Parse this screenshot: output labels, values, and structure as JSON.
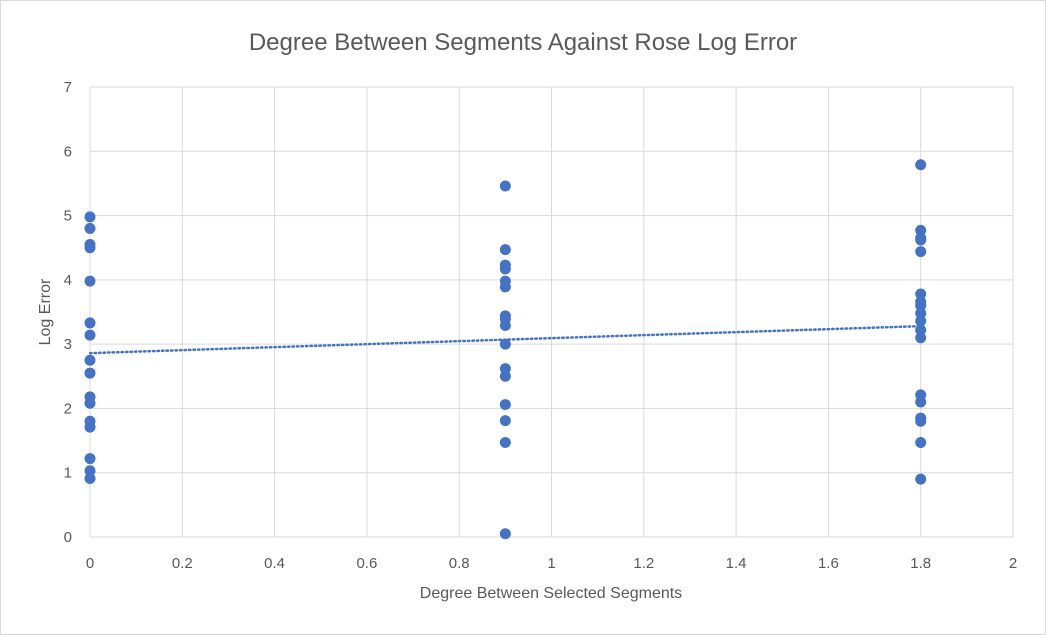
{
  "chart_data": {
    "type": "scatter",
    "title": "Degree Between Segments Against Rose Log Error",
    "xlabel": "Degree Between Selected Segments",
    "ylabel": "Log Error",
    "xlim": [
      0,
      2
    ],
    "ylim": [
      0,
      7
    ],
    "x_ticks": [
      "0",
      "0.2",
      "0.4",
      "0.6",
      "0.8",
      "1",
      "1.2",
      "1.4",
      "1.6",
      "1.8",
      "2"
    ],
    "y_ticks": [
      "0",
      "1",
      "2",
      "3",
      "4",
      "5",
      "6",
      "7"
    ],
    "grid": true,
    "legend": "none",
    "marker_color": "#4472C4",
    "trendline": {
      "type": "linear",
      "style": "dotted",
      "color": "#4472C4",
      "x": [
        0,
        1.8
      ],
      "y": [
        2.86,
        3.28
      ]
    },
    "series": [
      {
        "points": [
          [
            0,
            4.98
          ],
          [
            0,
            4.8
          ],
          [
            0,
            4.55
          ],
          [
            0,
            4.5
          ],
          [
            0,
            3.98
          ],
          [
            0,
            3.33
          ],
          [
            0,
            3.14
          ],
          [
            0,
            2.75
          ],
          [
            0,
            2.55
          ],
          [
            0,
            2.18
          ],
          [
            0,
            2.08
          ],
          [
            0,
            1.8
          ],
          [
            0,
            1.71
          ],
          [
            0,
            1.22
          ],
          [
            0,
            1.03
          ],
          [
            0,
            0.91
          ],
          [
            0.9,
            5.46
          ],
          [
            0.9,
            4.47
          ],
          [
            0.9,
            4.23
          ],
          [
            0.9,
            4.17
          ],
          [
            0.9,
            3.98
          ],
          [
            0.9,
            3.89
          ],
          [
            0.9,
            3.44
          ],
          [
            0.9,
            3.39
          ],
          [
            0.9,
            3.29
          ],
          [
            0.9,
            3.0
          ],
          [
            0.9,
            2.62
          ],
          [
            0.9,
            2.5
          ],
          [
            0.9,
            2.06
          ],
          [
            0.9,
            1.81
          ],
          [
            0.9,
            1.47
          ],
          [
            0.9,
            0.05
          ],
          [
            1.8,
            5.79
          ],
          [
            1.8,
            4.77
          ],
          [
            1.8,
            4.65
          ],
          [
            1.8,
            4.62
          ],
          [
            1.8,
            4.44
          ],
          [
            1.8,
            3.78
          ],
          [
            1.8,
            3.66
          ],
          [
            1.8,
            3.6
          ],
          [
            1.8,
            3.48
          ],
          [
            1.8,
            3.36
          ],
          [
            1.8,
            3.22
          ],
          [
            1.8,
            3.1
          ],
          [
            1.8,
            2.21
          ],
          [
            1.8,
            2.1
          ],
          [
            1.8,
            1.85
          ],
          [
            1.8,
            1.8
          ],
          [
            1.8,
            1.47
          ],
          [
            1.8,
            0.9
          ]
        ]
      }
    ]
  }
}
